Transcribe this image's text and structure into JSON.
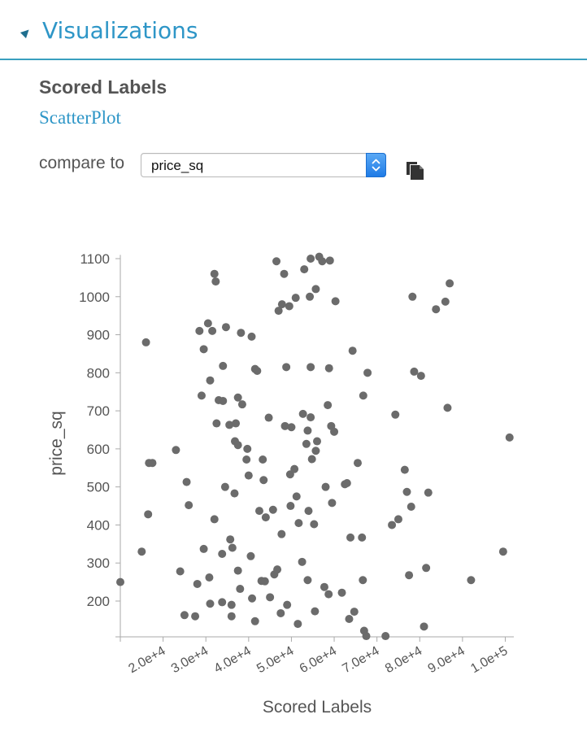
{
  "header": {
    "title": "Visualizations"
  },
  "section": {
    "title": "Scored Labels",
    "plot_type": "ScatterPlot"
  },
  "compare": {
    "label": "compare to",
    "selected": "price_sq"
  },
  "colors": {
    "accent": "#2e96c7",
    "point": "#6b6b6b",
    "axis": "#aaaaaa",
    "text": "#555555"
  },
  "icons": {
    "collapse": "triangle-down-icon",
    "select_arrow": "chevron-updown-icon",
    "copy": "copy-icon"
  },
  "chart_data": {
    "type": "scatter",
    "title": "",
    "xlabel": "Scored Labels",
    "ylabel": "price_sq",
    "xlim": [
      10000,
      102000
    ],
    "ylim": [
      100,
      1110
    ],
    "xticks": [
      20000,
      30000,
      40000,
      50000,
      60000,
      70000,
      80000,
      90000,
      100000
    ],
    "xtick_labels": [
      "2.0e+4",
      "3.0e+4",
      "4.0e+4",
      "5.0e+4",
      "6.0e+4",
      "7.0e+4",
      "8.0e+4",
      "9.0e+4",
      "1.0e+5"
    ],
    "yticks": [
      200,
      300,
      400,
      500,
      600,
      700,
      800,
      900,
      1000,
      1100
    ],
    "ytick_labels": [
      "200",
      "300",
      "400",
      "500",
      "600",
      "700",
      "800",
      "900",
      "1000",
      "1100"
    ],
    "grid": false,
    "points": [
      [
        10000,
        250
      ],
      [
        15000,
        330
      ],
      [
        16000,
        880
      ],
      [
        16500,
        428
      ],
      [
        16700,
        563
      ],
      [
        17500,
        563
      ],
      [
        23000,
        597
      ],
      [
        24000,
        278
      ],
      [
        25000,
        163
      ],
      [
        25500,
        513
      ],
      [
        26000,
        452
      ],
      [
        27500,
        160
      ],
      [
        28000,
        245
      ],
      [
        28500,
        910
      ],
      [
        29000,
        740
      ],
      [
        29500,
        337
      ],
      [
        29500,
        862
      ],
      [
        30500,
        930
      ],
      [
        30800,
        262
      ],
      [
        31000,
        193
      ],
      [
        31000,
        780
      ],
      [
        31500,
        910
      ],
      [
        32000,
        415
      ],
      [
        32000,
        1060
      ],
      [
        32300,
        1040
      ],
      [
        32500,
        667
      ],
      [
        33000,
        728
      ],
      [
        33800,
        197
      ],
      [
        33800,
        324
      ],
      [
        34000,
        726
      ],
      [
        34000,
        818
      ],
      [
        34500,
        500
      ],
      [
        34700,
        920
      ],
      [
        35500,
        663
      ],
      [
        35700,
        362
      ],
      [
        36000,
        190
      ],
      [
        36000,
        160
      ],
      [
        36200,
        340
      ],
      [
        36700,
        483
      ],
      [
        36800,
        620
      ],
      [
        37000,
        667
      ],
      [
        37500,
        610
      ],
      [
        37500,
        735
      ],
      [
        37500,
        280
      ],
      [
        38000,
        232
      ],
      [
        38200,
        905
      ],
      [
        38500,
        717
      ],
      [
        39500,
        572
      ],
      [
        39700,
        600
      ],
      [
        40000,
        530
      ],
      [
        40500,
        318
      ],
      [
        40700,
        895
      ],
      [
        40800,
        207
      ],
      [
        41500,
        810
      ],
      [
        41500,
        147
      ],
      [
        42000,
        805
      ],
      [
        42500,
        437
      ],
      [
        43000,
        253
      ],
      [
        43300,
        572
      ],
      [
        43500,
        518
      ],
      [
        43800,
        252
      ],
      [
        44000,
        420
      ],
      [
        44700,
        682
      ],
      [
        45000,
        210
      ],
      [
        45700,
        440
      ],
      [
        46000,
        270
      ],
      [
        46500,
        1093
      ],
      [
        46700,
        283
      ],
      [
        47000,
        963
      ],
      [
        47500,
        168
      ],
      [
        47700,
        376
      ],
      [
        47800,
        980
      ],
      [
        48300,
        1060
      ],
      [
        48500,
        660
      ],
      [
        48800,
        815
      ],
      [
        49000,
        190
      ],
      [
        49500,
        975
      ],
      [
        49700,
        533
      ],
      [
        49800,
        450
      ],
      [
        50000,
        657
      ],
      [
        50700,
        547
      ],
      [
        51000,
        997
      ],
      [
        51200,
        475
      ],
      [
        51500,
        140
      ],
      [
        51700,
        405
      ],
      [
        52500,
        303
      ],
      [
        52700,
        692
      ],
      [
        53000,
        1072
      ],
      [
        53500,
        613
      ],
      [
        53800,
        255
      ],
      [
        53800,
        648
      ],
      [
        54000,
        437
      ],
      [
        54300,
        1000
      ],
      [
        54500,
        815
      ],
      [
        54500,
        683
      ],
      [
        54500,
        1100
      ],
      [
        54800,
        573
      ],
      [
        55300,
        402
      ],
      [
        55500,
        173
      ],
      [
        55700,
        1020
      ],
      [
        55700,
        595
      ],
      [
        56000,
        620
      ],
      [
        56500,
        1105
      ],
      [
        57200,
        1093
      ],
      [
        57700,
        237
      ],
      [
        58000,
        500
      ],
      [
        58500,
        715
      ],
      [
        58700,
        218
      ],
      [
        58800,
        812
      ],
      [
        59000,
        1095
      ],
      [
        59300,
        660
      ],
      [
        59500,
        458
      ],
      [
        60000,
        645
      ],
      [
        60300,
        988
      ],
      [
        61800,
        222
      ],
      [
        62500,
        507
      ],
      [
        63000,
        510
      ],
      [
        63500,
        153
      ],
      [
        63800,
        367
      ],
      [
        64300,
        858
      ],
      [
        64700,
        172
      ],
      [
        65500,
        563
      ],
      [
        66500,
        367
      ],
      [
        66700,
        255
      ],
      [
        66800,
        740
      ],
      [
        67000,
        122
      ],
      [
        67500,
        108
      ],
      [
        67800,
        800
      ],
      [
        72000,
        108
      ],
      [
        73500,
        400
      ],
      [
        74300,
        690
      ],
      [
        75000,
        415
      ],
      [
        76500,
        545
      ],
      [
        77000,
        487
      ],
      [
        77500,
        268
      ],
      [
        78000,
        448
      ],
      [
        78300,
        1000
      ],
      [
        78700,
        803
      ],
      [
        80300,
        792
      ],
      [
        81000,
        133
      ],
      [
        81500,
        287
      ],
      [
        82000,
        485
      ],
      [
        83800,
        967
      ],
      [
        86000,
        987
      ],
      [
        86500,
        708
      ],
      [
        87000,
        1035
      ],
      [
        92000,
        255
      ],
      [
        99500,
        330
      ],
      [
        101000,
        630
      ]
    ]
  }
}
